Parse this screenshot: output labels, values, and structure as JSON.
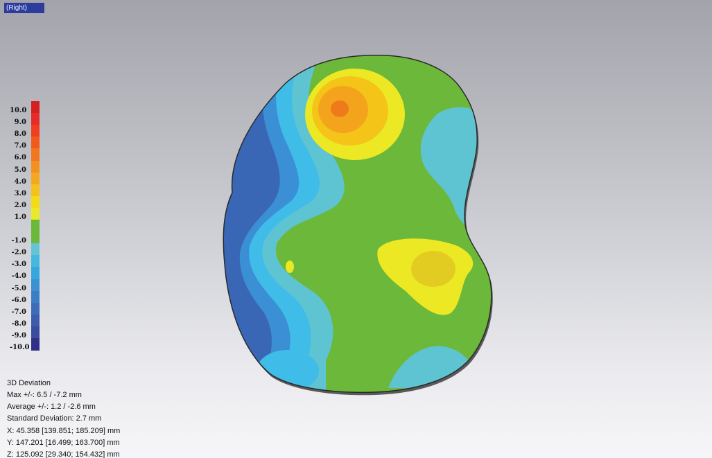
{
  "view": {
    "tab_label": "(Right)"
  },
  "legend": {
    "ticks": [
      "10.0",
      "9.0",
      "8.0",
      "7.0",
      "6.0",
      "5.0",
      "4.0",
      "3.0",
      "2.0",
      "1.0",
      "-1.0",
      "-2.0",
      "-3.0",
      "-4.0",
      "-5.0",
      "-6.0",
      "-7.0",
      "-8.0",
      "-9.0",
      "-10.0"
    ],
    "colors": [
      "#d42020",
      "#e82a2a",
      "#ef3e22",
      "#f25a1c",
      "#f27520",
      "#f39022",
      "#f4a820",
      "#f3c21c",
      "#f2dc18",
      "#eaea2a",
      "#6cb83a",
      "#63c4d6",
      "#46b8e0",
      "#35a8e0",
      "#3a92d2",
      "#3a7ec6",
      "#3c6cba",
      "#3c5cac",
      "#3a4c9e",
      "#30308a"
    ]
  },
  "stats": {
    "title": "3D Deviation",
    "max": "Max +/-: 6.5 / -7.2 mm",
    "average": "Average +/-: 1.2 / -2.6 mm",
    "std_dev": "Standard Deviation: 2.7 mm"
  },
  "coords": {
    "x": "X: 45.358 [139.851; 185.209] mm",
    "y": "Y: 147.201 [16.499; 163.700] mm",
    "z": "Z: 125.092 [29.340; 154.432] mm"
  },
  "model_colors": {
    "outline": "#2a2a2a",
    "green": "#6cb83a",
    "light_blue": "#5ec4d2",
    "cyan": "#3fbce8",
    "mid_blue": "#3b8fd4",
    "dark_blue": "#3a66b6",
    "yellow": "#ece824",
    "orange_light": "#f5c418",
    "orange": "#f3a41c",
    "orange_dark": "#ee7a1c"
  }
}
